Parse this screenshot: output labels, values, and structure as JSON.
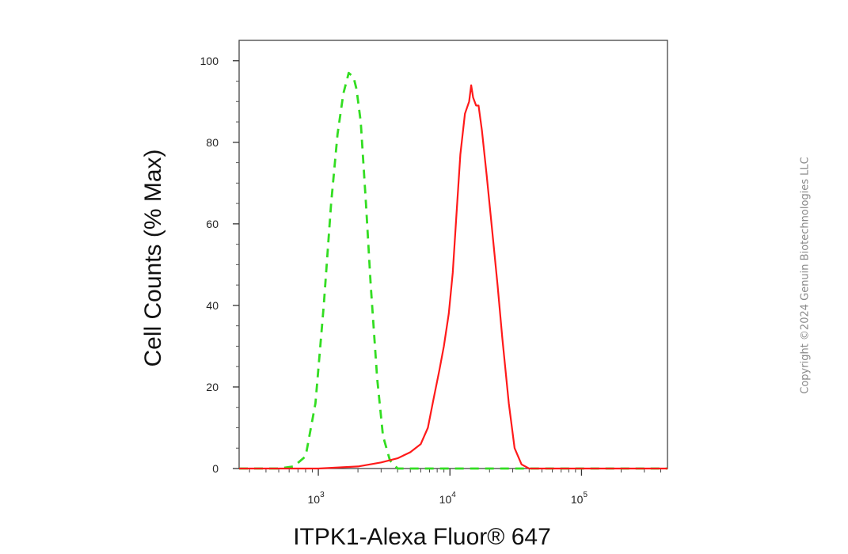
{
  "chart_data": {
    "type": "line",
    "title": "",
    "xlabel": "ITPK1-Alexa Fluor® 647",
    "ylabel": "Cell Counts (% Max)",
    "xscale": "log",
    "xlim": [
      250,
      450000
    ],
    "ylim": [
      0,
      105
    ],
    "y_ticks": [
      0,
      20,
      40,
      60,
      80,
      100
    ],
    "x_tick_labels": [
      {
        "value": 1000,
        "base": "10",
        "exp": "3"
      },
      {
        "value": 10000,
        "base": "10",
        "exp": "4"
      },
      {
        "value": 100000,
        "base": "10",
        "exp": "5"
      }
    ],
    "grid": false,
    "series": [
      {
        "color": "#33dd22",
        "style": "dashed",
        "x": [
          250,
          500,
          650,
          800,
          950,
          1100,
          1250,
          1400,
          1550,
          1700,
          1850,
          1950,
          2100,
          2300,
          2500,
          2800,
          3100,
          3500,
          4000,
          5000,
          7000,
          10000,
          30000,
          100000,
          450000
        ],
        "y": [
          0,
          0,
          0.5,
          3,
          16,
          40,
          65,
          82,
          92,
          97,
          96,
          93,
          85,
          65,
          45,
          22,
          8,
          2,
          0,
          0,
          0,
          0,
          0,
          0,
          0
        ]
      },
      {
        "color": "#ff1a1a",
        "style": "solid",
        "x": [
          250,
          1000,
          2000,
          3000,
          4000,
          5000,
          6000,
          6800,
          7500,
          8300,
          9000,
          9800,
          10500,
          11200,
          12000,
          13000,
          14000,
          14500,
          15000,
          15800,
          16500,
          17500,
          19000,
          21000,
          23000,
          25000,
          28000,
          31000,
          35000,
          40000,
          50000,
          450000
        ],
        "y": [
          0,
          0,
          0.5,
          1.5,
          2.5,
          4,
          6,
          10,
          17,
          24,
          30,
          38,
          48,
          62,
          77,
          87,
          90,
          94,
          91,
          89,
          89,
          83,
          72,
          58,
          45,
          32,
          16,
          5,
          1,
          0,
          0,
          0
        ]
      }
    ]
  },
  "watermark": "Copyright ©2024 Genuin Biotechnologies LLC"
}
